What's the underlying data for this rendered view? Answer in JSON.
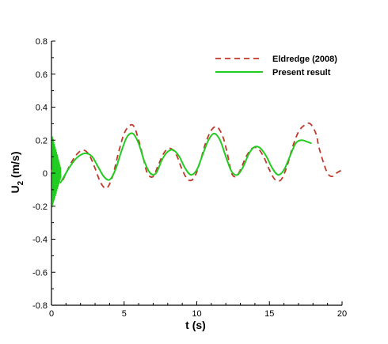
{
  "chart_data": {
    "type": "line",
    "xlabel": "t (s)",
    "ylabel_main": "U",
    "ylabel_sub": "2",
    "ylabel_unit": " (m/s)",
    "xlim": [
      0,
      20
    ],
    "ylim": [
      -0.8,
      0.8
    ],
    "xticks": [
      0,
      5,
      10,
      15,
      20
    ],
    "xtick_labels": [
      "0",
      "5",
      "10",
      "15",
      "20"
    ],
    "yticks": [
      -0.8,
      -0.6,
      -0.4,
      -0.2,
      0,
      0.2,
      0.4,
      0.6,
      0.8
    ],
    "ytick_labels": [
      "-0.8",
      "-0.6",
      "-0.4",
      "-0.2",
      "0",
      "0.2",
      "0.4",
      "0.6",
      "0.8"
    ],
    "grid": false,
    "legend_position": "top-right",
    "series": [
      {
        "name": "Eldredge (2008)",
        "color": "#c0392b",
        "style": "dashed",
        "x": [
          0,
          0.3,
          0.7,
          1.0,
          1.4,
          1.8,
          2.2,
          2.6,
          3.0,
          3.4,
          3.8,
          4.2,
          4.6,
          5.0,
          5.4,
          5.7,
          6.0,
          6.3,
          6.6,
          7.0,
          7.4,
          7.8,
          8.2,
          8.6,
          9.0,
          9.4,
          9.8,
          10.2,
          10.6,
          11.0,
          11.4,
          11.8,
          12.1,
          12.4,
          12.7,
          13.0,
          13.4,
          13.8,
          14.2,
          14.6,
          15.0,
          15.4,
          15.8,
          16.2,
          16.6,
          17.0,
          17.4,
          17.8,
          18.2,
          18.4,
          18.7,
          19.0,
          19.3,
          19.6,
          20.0
        ],
        "y": [
          0.02,
          -0.04,
          -0.05,
          0.0,
          0.07,
          0.12,
          0.14,
          0.11,
          0.03,
          -0.06,
          -0.09,
          -0.02,
          0.12,
          0.24,
          0.29,
          0.28,
          0.2,
          0.1,
          0.0,
          -0.02,
          0.06,
          0.13,
          0.15,
          0.11,
          0.02,
          -0.04,
          -0.03,
          0.06,
          0.18,
          0.26,
          0.28,
          0.22,
          0.12,
          0.0,
          -0.02,
          0.02,
          0.1,
          0.15,
          0.15,
          0.1,
          0.02,
          -0.04,
          -0.04,
          0.04,
          0.16,
          0.25,
          0.29,
          0.3,
          0.24,
          0.16,
          0.07,
          0.0,
          -0.02,
          0.0,
          0.02
        ]
      },
      {
        "name": "Present result",
        "color": "#22cc22",
        "style": "solid",
        "x": [
          0.8,
          1.2,
          1.6,
          2.0,
          2.4,
          2.8,
          3.2,
          3.6,
          4.0,
          4.4,
          4.8,
          5.2,
          5.6,
          6.0,
          6.4,
          6.8,
          7.2,
          7.6,
          8.0,
          8.4,
          8.8,
          9.2,
          9.6,
          10.0,
          10.4,
          10.8,
          11.2,
          11.6,
          12.0,
          12.4,
          12.8,
          13.2,
          13.6,
          14.0,
          14.4,
          14.8,
          15.2,
          15.6,
          16.0,
          16.4,
          16.8,
          17.2,
          17.6,
          17.9
        ],
        "y": [
          -0.03,
          0.03,
          0.08,
          0.11,
          0.12,
          0.1,
          0.04,
          -0.02,
          -0.04,
          0.02,
          0.13,
          0.22,
          0.24,
          0.18,
          0.07,
          0.0,
          0.0,
          0.08,
          0.13,
          0.14,
          0.1,
          0.03,
          -0.01,
          0.02,
          0.11,
          0.2,
          0.24,
          0.2,
          0.1,
          0.01,
          -0.01,
          0.04,
          0.12,
          0.16,
          0.15,
          0.1,
          0.03,
          -0.01,
          0.02,
          0.1,
          0.18,
          0.2,
          0.19,
          0.18
        ]
      }
    ]
  }
}
